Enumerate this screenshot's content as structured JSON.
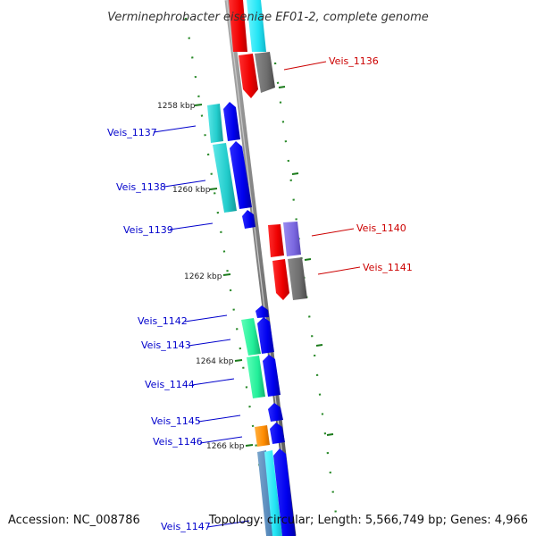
{
  "title": "Verminephrobacter eiseniae EF01-2, complete genome",
  "accession": "Accession: NC_008786",
  "topology": "Topology: circular; Length: 5,566,749 bp; Genes: 4,966",
  "ticks": [
    "1258 kbp",
    "1260 kbp",
    "1262 kbp",
    "1264 kbp",
    "1266 kbp"
  ],
  "gene_labels": [
    {
      "text": "Veis_1136",
      "strand": "forward",
      "color": "#cc0000"
    },
    {
      "text": "Veis_1137",
      "strand": "reverse",
      "color": "#0000cc"
    },
    {
      "text": "Veis_1138",
      "strand": "reverse",
      "color": "#0000cc"
    },
    {
      "text": "Veis_1139",
      "strand": "reverse",
      "color": "#0000cc"
    },
    {
      "text": "Veis_1140",
      "strand": "forward",
      "color": "#cc0000"
    },
    {
      "text": "Veis_1141",
      "strand": "forward",
      "color": "#cc0000"
    },
    {
      "text": "Veis_1142",
      "strand": "reverse",
      "color": "#0000cc"
    },
    {
      "text": "Veis_1143",
      "strand": "reverse",
      "color": "#0000cc"
    },
    {
      "text": "Veis_1144",
      "strand": "reverse",
      "color": "#0000cc"
    },
    {
      "text": "Veis_1145",
      "strand": "reverse",
      "color": "#0000cc"
    },
    {
      "text": "Veis_1146",
      "strand": "reverse",
      "color": "#0000cc"
    },
    {
      "text": "Veis_1147",
      "strand": "reverse",
      "color": "#0000cc"
    }
  ],
  "colors": {
    "backbone": "#888888",
    "forward_cds": "#ff0000",
    "reverse_cds": "#0000ee",
    "dotted_guides": "#2a8a2a"
  }
}
